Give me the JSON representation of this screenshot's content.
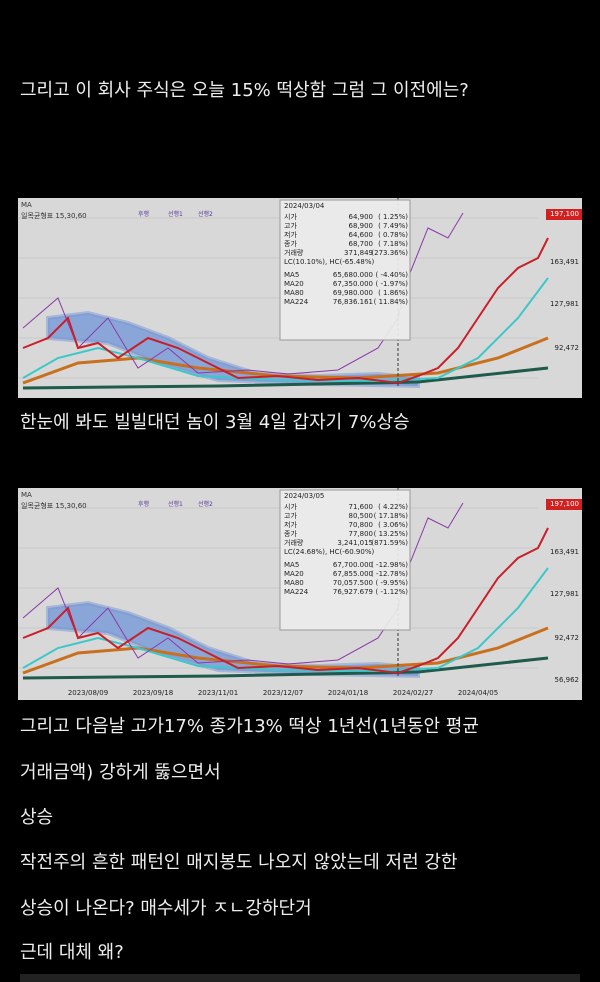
{
  "intro": "그리고 이 회사 주식은 오늘 15% 떡상함 그럼 그 이전에는?",
  "charts": [
    {
      "ma_label": "MA",
      "indicator": "일목균형표 15,30,60",
      "legend": [
        "후행",
        "선행1",
        "선행2"
      ],
      "date": "2024/03/04",
      "rows": [
        [
          "시가",
          "64,900",
          "( 1.25%)"
        ],
        [
          "고가",
          "68,900",
          "( 7.49%)"
        ],
        [
          "저가",
          "64,600",
          "( 0.78%)"
        ],
        [
          "종가",
          "68,700",
          "( 7.18%)"
        ],
        [
          "거래량",
          "371,849",
          "(273.36%)"
        ]
      ],
      "range": "LC(10.10%), HC(-65.48%)",
      "ma_rows": [
        [
          "MA5",
          "65,680.000",
          "( -4.40%)"
        ],
        [
          "MA20",
          "67,350.000",
          "( -1.97%)"
        ],
        [
          "MA80",
          "69,980.000",
          "( 1.86%)"
        ],
        [
          "MA224",
          "76,836.161",
          "( 11.84%)"
        ]
      ],
      "prices": [
        "197,100",
        "163,491",
        "127,981",
        "92,472"
      ],
      "dates": []
    },
    {
      "ma_label": "MA",
      "indicator": "일목균형표 15,30,60",
      "legend": [
        "후행",
        "선행1",
        "선행2"
      ],
      "date": "2024/03/05",
      "rows": [
        [
          "시가",
          "71,600",
          "( 4.22%)"
        ],
        [
          "고가",
          "80,500",
          "( 17.18%)"
        ],
        [
          "저가",
          "70,800",
          "( 3.06%)"
        ],
        [
          "종가",
          "77,800",
          "( 13.25%)"
        ],
        [
          "거래량",
          "3,241,015",
          "(871.59%)"
        ]
      ],
      "range": "LC(24.68%), HC(-60.90%)",
      "ma_rows": [
        [
          "MA5",
          "67,700.000",
          "( -12.98%)"
        ],
        [
          "MA20",
          "67,855.000",
          "( -12.78%)"
        ],
        [
          "MA80",
          "70,057.500",
          "( -9.95%)"
        ],
        [
          "MA224",
          "76,927.679",
          "( -1.12%)"
        ]
      ],
      "prices": [
        "197,100",
        "163,491",
        "127,981",
        "92,472",
        "56,962"
      ],
      "dates": [
        "2023/08/09",
        "2023/09/18",
        "2023/11/01",
        "2023/12/07",
        "2024/01/18",
        "2024/02/27",
        "2024/04/05"
      ]
    }
  ],
  "caption1": "한눈에 봐도 빌빌대던 놈이 3월 4일 갑자기 7%상승",
  "paragraphs": [
    "그리고 다음날 고가17% 종가13% 떡상 1년선(1년동안 평균",
    "거래금액) 강하게 뚫으면서",
    "상승",
    "작전주의 흔한 패턴인 매지봉도 나오지 않았는데 저런 강한",
    "상승이 나온다? 매수세가 ㅈㄴ강하단거",
    "근데 대체 왜?"
  ]
}
